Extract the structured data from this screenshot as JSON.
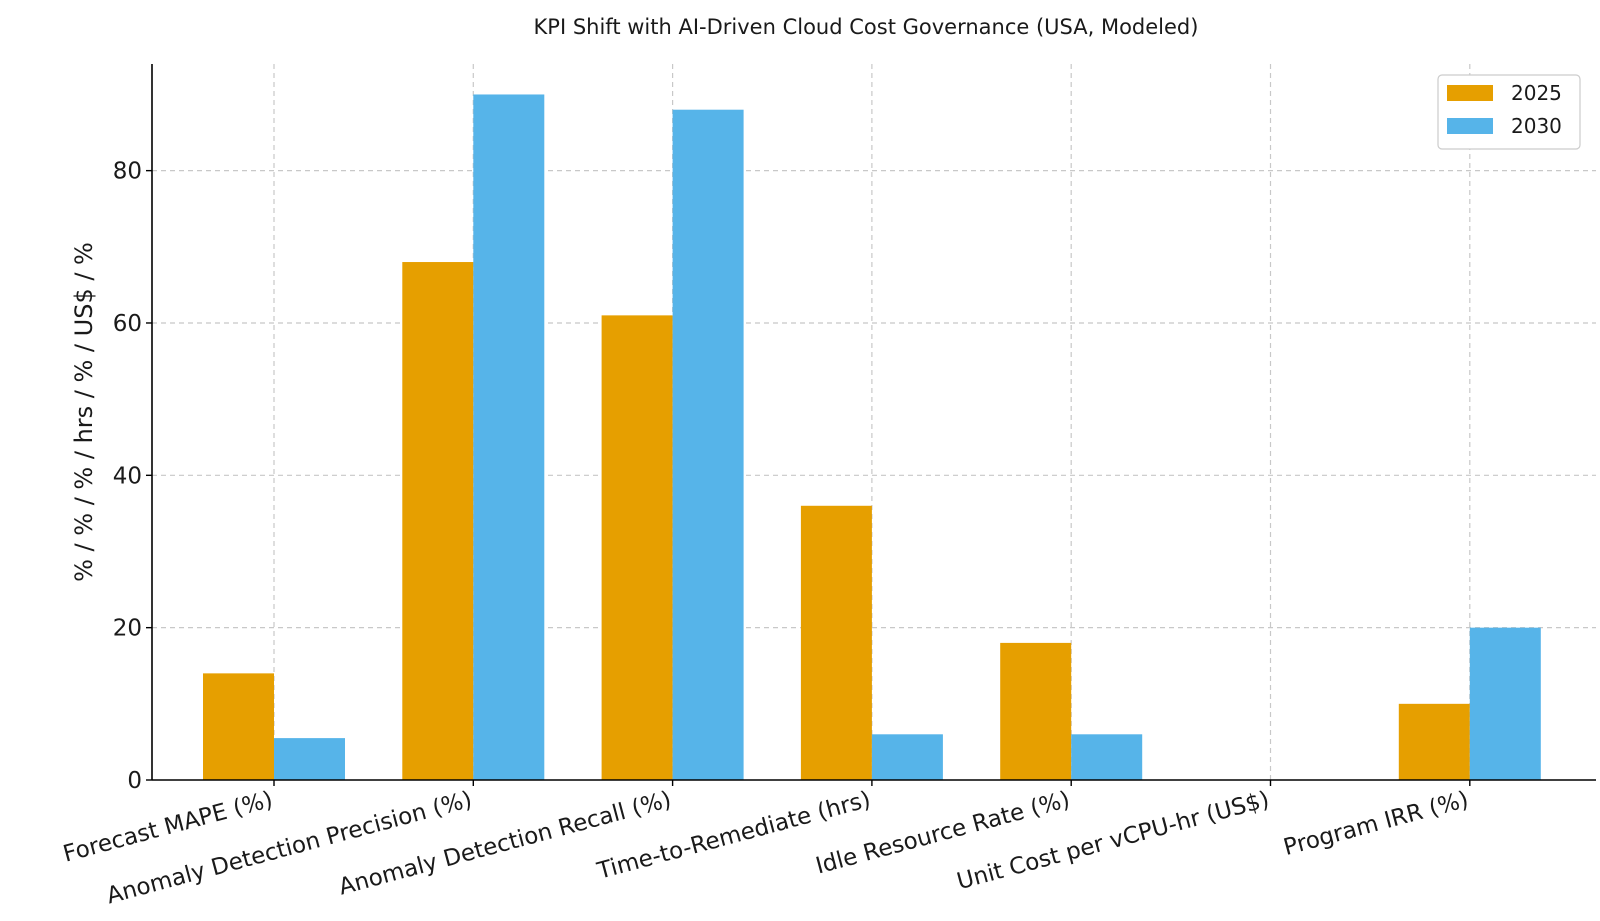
{
  "chart_data": {
    "type": "bar",
    "title": "KPI Shift with AI-Driven Cloud Cost Governance (USA, Modeled)",
    "xlabel": "",
    "ylabel": "% / % / % / hrs / % / US$ / %",
    "ylim": [
      0,
      94
    ],
    "yticks": [
      0,
      20,
      40,
      60,
      80
    ],
    "grid": true,
    "legend_position": "top-right",
    "categories": [
      "Forecast MAPE (%)",
      "Anomaly Detection Precision (%)",
      "Anomaly Detection Recall (%)",
      "Time-to-Remediate (hrs)",
      "Idle Resource Rate (%)",
      "Unit Cost per vCPU-hr (US$)",
      "Program IRR (%)"
    ],
    "series": [
      {
        "name": "2025",
        "color": "#E69F00",
        "values": [
          14,
          68,
          61,
          36,
          18,
          0.05,
          10
        ]
      },
      {
        "name": "2030",
        "color": "#56B4E9",
        "values": [
          5.5,
          90,
          88,
          6,
          6,
          0.035,
          20
        ]
      }
    ]
  }
}
